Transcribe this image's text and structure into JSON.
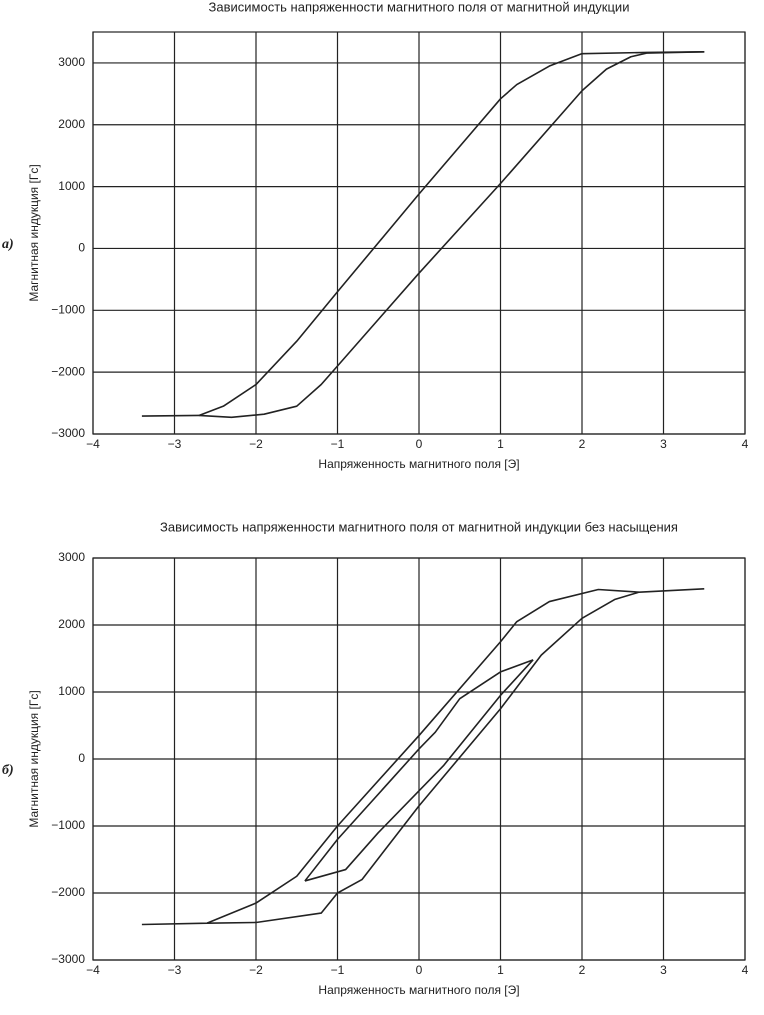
{
  "chart_data": [
    {
      "type": "line",
      "panel_label": "а)",
      "title": "Зависимость напряженности магнитного поля от магнитной индукции",
      "xlabel": "Напряженность магнитного поля [Э]",
      "ylabel": "Магнитная индукция [Гс]",
      "xlim": [
        -4,
        4
      ],
      "ylim": [
        -3000,
        3500
      ],
      "grid": true,
      "xticks": [
        {
          "value": -4,
          "label": "−4"
        },
        {
          "value": -3,
          "label": "−3"
        },
        {
          "value": -2,
          "label": "−2"
        },
        {
          "value": -1,
          "label": "−1"
        },
        0,
        1,
        2,
        3,
        4
      ],
      "yticks": [
        {
          "value": -3000,
          "label": "−3000"
        },
        {
          "value": -2000,
          "label": "−2000"
        },
        {
          "value": -1000,
          "label": "−1000"
        },
        0,
        1000,
        2000,
        3000
      ],
      "series": [
        {
          "color": "#222222",
          "x": [
            3.5,
            2.8,
            2.0,
            1.6,
            1.2,
            1.0,
            0,
            -1,
            -1.5,
            -2,
            -2.4,
            -2.7,
            -3.4
          ],
          "values": [
            3180,
            3170,
            3150,
            2950,
            2650,
            2420,
            880,
            -700,
            -1500,
            -2200,
            -2550,
            -2700,
            -2710
          ]
        },
        {
          "color": "#222222",
          "x": [
            -2.7,
            -2.3,
            -1.9,
            -1.5,
            -1.2,
            -1,
            0,
            1,
            2,
            2.3,
            2.6,
            2.8,
            3.5
          ],
          "values": [
            -2700,
            -2730,
            -2680,
            -2550,
            -2200,
            -1900,
            -400,
            1050,
            2550,
            2900,
            3100,
            3160,
            3180
          ]
        }
      ]
    },
    {
      "type": "line",
      "panel_label": "б)",
      "title": "Зависимость напряженности магнитного поля от магнитной индукции без насыщения",
      "xlabel": "Напряженность магнитного поля [Э]",
      "ylabel": "Магнитная индукция [Гс]",
      "xlim": [
        -4,
        4
      ],
      "ylim": [
        -3000,
        3000
      ],
      "grid": true,
      "xticks": [
        {
          "value": -4,
          "label": "−4"
        },
        {
          "value": -3,
          "label": "−3"
        },
        {
          "value": -2,
          "label": "−2"
        },
        {
          "value": -1,
          "label": "−1"
        },
        0,
        1,
        2,
        3,
        4
      ],
      "yticks": [
        {
          "value": -3000,
          "label": "−3000"
        },
        {
          "value": -2000,
          "label": "−2000"
        },
        {
          "value": -1000,
          "label": "−1000"
        },
        0,
        1000,
        2000,
        3000
      ],
      "series": [
        {
          "color": "#222222",
          "x": [
            3.5,
            2.7,
            2.2,
            1.6,
            1.2,
            1,
            0,
            -1,
            -1.5,
            -2,
            -2.6,
            -3.4
          ],
          "values": [
            2540,
            2490,
            2530,
            2350,
            2050,
            1750,
            350,
            -1000,
            -1750,
            -2150,
            -2450,
            -2470
          ]
        },
        {
          "color": "#222222",
          "x": [
            -2.6,
            -2,
            -1.2,
            -1,
            -0.7,
            0,
            1,
            1.5,
            2,
            2.4,
            2.7
          ],
          "values": [
            -2450,
            -2440,
            -2300,
            -2000,
            -1800,
            -700,
            750,
            1550,
            2100,
            2380,
            2490
          ]
        },
        {
          "color": "#222222",
          "x": [
            1.4,
            1,
            0.5,
            0.2,
            0,
            -1,
            -1.4
          ],
          "values": [
            1480,
            1300,
            900,
            400,
            150,
            -1200,
            -1820
          ]
        },
        {
          "color": "#222222",
          "x": [
            -1.4,
            -0.9,
            -0.5,
            0.3,
            1,
            1.4
          ],
          "values": [
            -1820,
            -1650,
            -1100,
            -100,
            950,
            1480
          ]
        }
      ]
    }
  ]
}
